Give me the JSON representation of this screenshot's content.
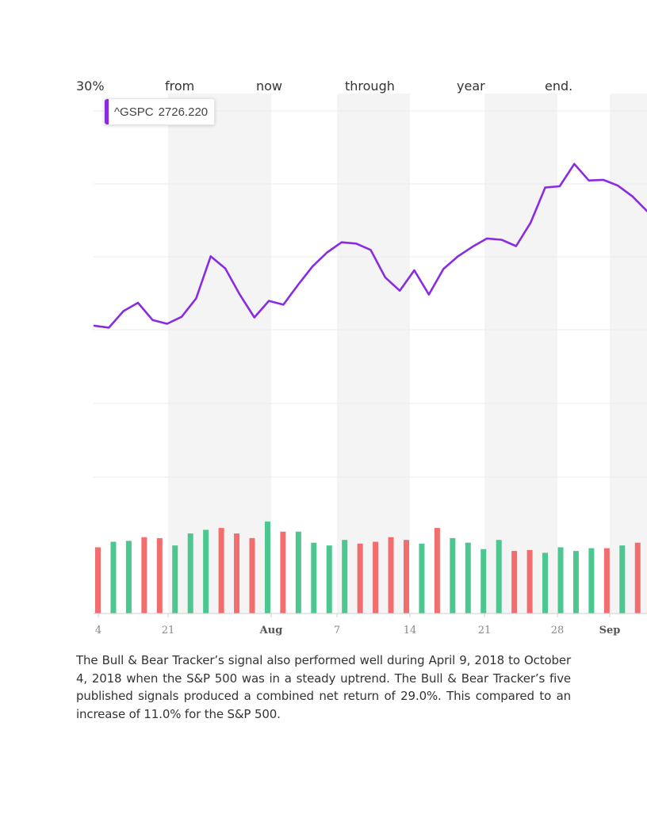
{
  "heading_words": [
    "30%",
    "from",
    "now",
    "through",
    "year",
    "end."
  ],
  "tooltip": {
    "symbol": "^GSPC",
    "value": "2726.220",
    "color": "#8a2be2"
  },
  "chart_data": {
    "type": "line",
    "series": [
      {
        "name": "^GSPC",
        "color": "#8a2be2",
        "values": [
          2575,
          2572,
          2598,
          2611,
          2584,
          2578,
          2589,
          2618,
          2684,
          2665,
          2624,
          2588,
          2614,
          2608,
          2639,
          2668,
          2690,
          2706,
          2704,
          2694,
          2651,
          2630,
          2662,
          2624,
          2664,
          2684,
          2699,
          2712,
          2710,
          2700,
          2737,
          2792,
          2794,
          2829,
          2803,
          2804,
          2795,
          2778,
          2755
        ]
      }
    ],
    "volume_bars": [
      {
        "v": 0.72,
        "dir": "down"
      },
      {
        "v": 0.78,
        "dir": "up"
      },
      {
        "v": 0.79,
        "dir": "up"
      },
      {
        "v": 0.83,
        "dir": "down"
      },
      {
        "v": 0.82,
        "dir": "down"
      },
      {
        "v": 0.74,
        "dir": "up"
      },
      {
        "v": 0.87,
        "dir": "up"
      },
      {
        "v": 0.91,
        "dir": "up"
      },
      {
        "v": 0.93,
        "dir": "down"
      },
      {
        "v": 0.87,
        "dir": "down"
      },
      {
        "v": 0.82,
        "dir": "down"
      },
      {
        "v": 1.0,
        "dir": "up"
      },
      {
        "v": 0.89,
        "dir": "down"
      },
      {
        "v": 0.89,
        "dir": "up"
      },
      {
        "v": 0.77,
        "dir": "up"
      },
      {
        "v": 0.74,
        "dir": "up"
      },
      {
        "v": 0.8,
        "dir": "up"
      },
      {
        "v": 0.76,
        "dir": "down"
      },
      {
        "v": 0.78,
        "dir": "down"
      },
      {
        "v": 0.83,
        "dir": "down"
      },
      {
        "v": 0.8,
        "dir": "down"
      },
      {
        "v": 0.76,
        "dir": "up"
      },
      {
        "v": 0.93,
        "dir": "down"
      },
      {
        "v": 0.82,
        "dir": "up"
      },
      {
        "v": 0.77,
        "dir": "up"
      },
      {
        "v": 0.7,
        "dir": "up"
      },
      {
        "v": 0.8,
        "dir": "up"
      },
      {
        "v": 0.68,
        "dir": "down"
      },
      {
        "v": 0.69,
        "dir": "down"
      },
      {
        "v": 0.66,
        "dir": "up"
      },
      {
        "v": 0.72,
        "dir": "up"
      },
      {
        "v": 0.68,
        "dir": "up"
      },
      {
        "v": 0.71,
        "dir": "up"
      },
      {
        "v": 0.71,
        "dir": "down"
      },
      {
        "v": 0.74,
        "dir": "up"
      },
      {
        "v": 0.77,
        "dir": "down"
      },
      {
        "v": 0.82,
        "dir": "down"
      },
      {
        "v": 0.8,
        "dir": "down"
      }
    ],
    "x_tick_labels": [
      {
        "label": "4",
        "index": 0,
        "bold": false
      },
      {
        "label": "21",
        "index": 5,
        "bold": false
      },
      {
        "label": "Aug",
        "index": 12,
        "bold": true
      },
      {
        "label": "7",
        "index": 16,
        "bold": false
      },
      {
        "label": "14",
        "index": 21,
        "bold": false
      },
      {
        "label": "21",
        "index": 26,
        "bold": false
      },
      {
        "label": "28",
        "index": 31,
        "bold": false
      },
      {
        "label": "Sep",
        "index": 35,
        "bold": true
      }
    ],
    "up_color": "#4cc790",
    "down_color": "#f26d6d",
    "grid": true
  },
  "paragraph": "The Bull & Bear Tracker’s signal also performed well during April 9, 2018 to October 4, 2018 when the S&P 500 was in a steady uptrend. The Bull & Bear Tracker’s five published signals produced a combined net return of 29.0%. This compared to an increase of 11.0% for the S&P 500."
}
